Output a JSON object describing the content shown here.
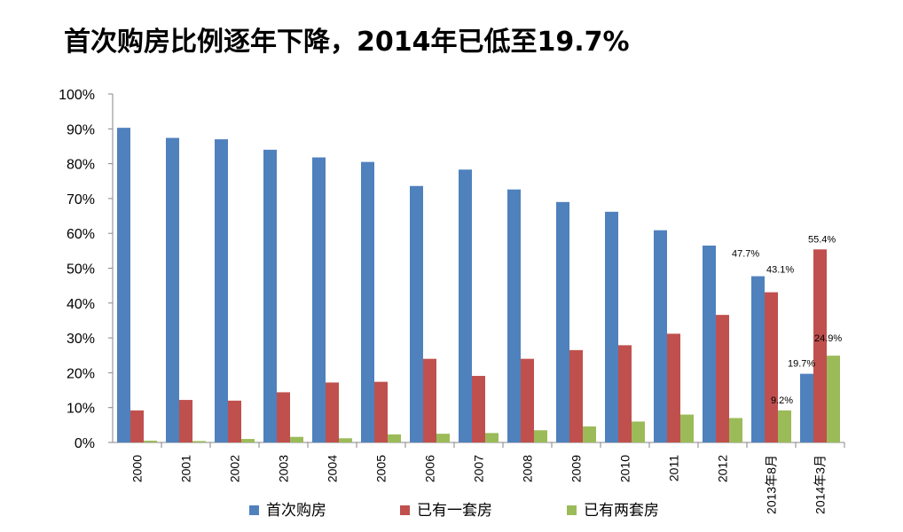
{
  "title": "首次购房比例逐年下降，2014年已低至19.7%",
  "chart_data": {
    "type": "bar",
    "categories": [
      "2000",
      "2001",
      "2002",
      "2003",
      "2004",
      "2005",
      "2006",
      "2007",
      "2008",
      "2009",
      "2010",
      "2011",
      "2012",
      "2013年8月",
      "2014年3月"
    ],
    "series": [
      {
        "name": "首次购房",
        "color": "#4f81bd",
        "values": [
          90.3,
          87.4,
          87.0,
          84.0,
          81.8,
          80.5,
          73.6,
          78.3,
          72.6,
          69.0,
          66.2,
          60.9,
          56.5,
          47.7,
          19.7
        ]
      },
      {
        "name": "已有一套房",
        "color": "#c0504d",
        "values": [
          9.2,
          12.2,
          12.0,
          14.4,
          17.2,
          17.4,
          24.0,
          19.1,
          24.0,
          26.5,
          27.9,
          31.2,
          36.6,
          43.1,
          55.4
        ]
      },
      {
        "name": "已有两套房",
        "color": "#9bbb59",
        "values": [
          0.5,
          0.4,
          1.0,
          1.6,
          1.2,
          2.3,
          2.5,
          2.7,
          3.5,
          4.6,
          6.0,
          8.0,
          7.0,
          9.2,
          24.9
        ]
      }
    ],
    "yticks": [
      "0%",
      "10%",
      "20%",
      "30%",
      "40%",
      "50%",
      "60%",
      "70%",
      "80%",
      "90%",
      "100%"
    ],
    "ylim": [
      0,
      100
    ],
    "data_labels": [
      {
        "series": 0,
        "index": 13,
        "text": "47.7%"
      },
      {
        "series": 1,
        "index": 13,
        "text": "43.1%"
      },
      {
        "series": 2,
        "index": 13,
        "text": "9.2%"
      },
      {
        "series": 0,
        "index": 14,
        "text": "19.7%"
      },
      {
        "series": 1,
        "index": 14,
        "text": "55.4%"
      },
      {
        "series": 2,
        "index": 14,
        "text": "24.9%"
      }
    ],
    "grid": false,
    "legend_position": "bottom"
  }
}
